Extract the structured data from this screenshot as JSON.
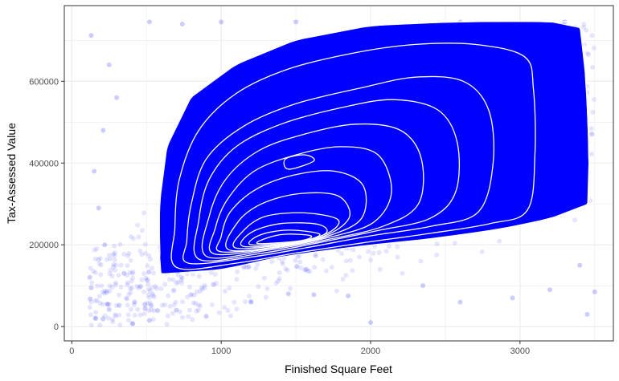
{
  "chart_data": {
    "type": "scatter",
    "title": "",
    "xlabel": "Finished Square Feet",
    "ylabel": "Tax-Assessed Value",
    "xlim": [
      -50,
      3625
    ],
    "ylim": [
      -35000,
      785000
    ],
    "x_ticks": [
      0,
      1000,
      2000,
      3000
    ],
    "x_tick_labels": [
      "0",
      "1000",
      "2000",
      "3000"
    ],
    "y_ticks": [
      0,
      200000,
      400000,
      600000
    ],
    "y_tick_labels": [
      "0",
      "200000",
      "400000",
      "600000"
    ],
    "grid": true,
    "legend": "none",
    "point_color": "#0000ff",
    "point_alpha": 0.1,
    "contour_color": "#ffffff",
    "panel_border_color": "#333333",
    "grid_color": "#ebebeb",
    "point_samples": [
      {
        "x": 130,
        "y": 712000
      },
      {
        "x": 250,
        "y": 640000
      },
      {
        "x": 300,
        "y": 560000
      },
      {
        "x": 210,
        "y": 480000
      },
      {
        "x": 150,
        "y": 380000
      },
      {
        "x": 180,
        "y": 290000
      },
      {
        "x": 220,
        "y": 200000
      },
      {
        "x": 130,
        "y": 95000
      },
      {
        "x": 160,
        "y": 20000
      },
      {
        "x": 350,
        "y": 130000
      },
      {
        "x": 420,
        "y": 60000
      },
      {
        "x": 520,
        "y": 15000
      },
      {
        "x": 700,
        "y": 40000
      },
      {
        "x": 900,
        "y": 25000
      },
      {
        "x": 1200,
        "y": 60000
      },
      {
        "x": 1450,
        "y": 80000
      },
      {
        "x": 1620,
        "y": 78000
      },
      {
        "x": 1850,
        "y": 75000
      },
      {
        "x": 2000,
        "y": 10000
      },
      {
        "x": 2350,
        "y": 100000
      },
      {
        "x": 2600,
        "y": 60000
      },
      {
        "x": 2950,
        "y": 70000
      },
      {
        "x": 3200,
        "y": 90000
      },
      {
        "x": 3400,
        "y": 150000
      },
      {
        "x": 3500,
        "y": 85000
      },
      {
        "x": 3450,
        "y": 30000
      },
      {
        "x": 520,
        "y": 745000
      },
      {
        "x": 740,
        "y": 740000
      },
      {
        "x": 1000,
        "y": 745000
      },
      {
        "x": 1500,
        "y": 745000
      },
      {
        "x": 2600,
        "y": 745000
      },
      {
        "x": 3300,
        "y": 745000
      }
    ],
    "contour_levels": [
      [
        [
          600,
          130000
        ],
        [
          1000,
          140000
        ],
        [
          1400,
          170000
        ],
        [
          1900,
          195000
        ],
        [
          2400,
          215000
        ],
        [
          2850,
          238000
        ],
        [
          3200,
          265000
        ],
        [
          3450,
          300000
        ],
        [
          3460,
          420000
        ],
        [
          3440,
          600000
        ],
        [
          3400,
          730000
        ],
        [
          3200,
          745000
        ],
        [
          2600,
          745000
        ],
        [
          2000,
          735000
        ],
        [
          1500,
          700000
        ],
        [
          1100,
          640000
        ],
        [
          800,
          560000
        ],
        [
          640,
          440000
        ],
        [
          590,
          300000
        ],
        [
          590,
          180000
        ]
      ],
      [
        [
          700,
          145000
        ],
        [
          1100,
          155000
        ],
        [
          1500,
          180000
        ],
        [
          1950,
          205000
        ],
        [
          2400,
          228000
        ],
        [
          2800,
          252000
        ],
        [
          3050,
          285000
        ],
        [
          3100,
          420000
        ],
        [
          3090,
          580000
        ],
        [
          3030,
          660000
        ],
        [
          2700,
          690000
        ],
        [
          2300,
          690000
        ],
        [
          1900,
          670000
        ],
        [
          1450,
          630000
        ],
        [
          1100,
          570000
        ],
        [
          850,
          480000
        ],
        [
          720,
          360000
        ],
        [
          690,
          240000
        ]
      ],
      [
        [
          780,
          155000
        ],
        [
          1200,
          170000
        ],
        [
          1600,
          195000
        ],
        [
          2000,
          222000
        ],
        [
          2400,
          245000
        ],
        [
          2720,
          280000
        ],
        [
          2820,
          400000
        ],
        [
          2790,
          530000
        ],
        [
          2620,
          600000
        ],
        [
          2300,
          610000
        ],
        [
          1950,
          585000
        ],
        [
          1500,
          545000
        ],
        [
          1150,
          490000
        ],
        [
          900,
          410000
        ],
        [
          800,
          300000
        ],
        [
          770,
          210000
        ]
      ],
      [
        [
          850,
          165000
        ],
        [
          1250,
          178000
        ],
        [
          1650,
          205000
        ],
        [
          2050,
          235000
        ],
        [
          2400,
          265000
        ],
        [
          2570,
          330000
        ],
        [
          2580,
          450000
        ],
        [
          2450,
          530000
        ],
        [
          2150,
          555000
        ],
        [
          1800,
          535000
        ],
        [
          1400,
          495000
        ],
        [
          1100,
          440000
        ],
        [
          920,
          360000
        ],
        [
          850,
          260000
        ]
      ],
      [
        [
          900,
          172000
        ],
        [
          1300,
          186000
        ],
        [
          1700,
          212000
        ],
        [
          2080,
          245000
        ],
        [
          2320,
          300000
        ],
        [
          2340,
          410000
        ],
        [
          2200,
          480000
        ],
        [
          1900,
          495000
        ],
        [
          1550,
          470000
        ],
        [
          1250,
          430000
        ],
        [
          1030,
          360000
        ],
        [
          920,
          270000
        ]
      ],
      [
        [
          950,
          178000
        ],
        [
          1350,
          192000
        ],
        [
          1720,
          218000
        ],
        [
          2020,
          255000
        ],
        [
          2140,
          330000
        ],
        [
          2050,
          420000
        ],
        [
          1800,
          440000
        ],
        [
          1500,
          420000
        ],
        [
          1220,
          380000
        ],
        [
          1040,
          310000
        ],
        [
          960,
          240000
        ]
      ],
      [
        [
          1000,
          183000
        ],
        [
          1400,
          196000
        ],
        [
          1720,
          222000
        ],
        [
          1940,
          265000
        ],
        [
          1950,
          345000
        ],
        [
          1760,
          380000
        ],
        [
          1480,
          370000
        ],
        [
          1230,
          335000
        ],
        [
          1060,
          280000
        ],
        [
          1000,
          220000
        ]
      ],
      [
        [
          1050,
          188000
        ],
        [
          1450,
          200000
        ],
        [
          1720,
          226000
        ],
        [
          1860,
          270000
        ],
        [
          1780,
          320000
        ],
        [
          1520,
          325000
        ],
        [
          1270,
          300000
        ],
        [
          1110,
          255000
        ]
      ],
      [
        [
          1100,
          192000
        ],
        [
          1480,
          204000
        ],
        [
          1720,
          230000
        ],
        [
          1780,
          262000
        ],
        [
          1560,
          278000
        ],
        [
          1300,
          270000
        ],
        [
          1150,
          235000
        ]
      ],
      [
        [
          1150,
          196000
        ],
        [
          1500,
          206000
        ],
        [
          1700,
          228000
        ],
        [
          1650,
          250000
        ],
        [
          1400,
          252000
        ],
        [
          1200,
          230000
        ]
      ],
      [
        [
          1200,
          200000
        ],
        [
          1520,
          208000
        ],
        [
          1660,
          226000
        ],
        [
          1450,
          236000
        ],
        [
          1260,
          224000
        ]
      ],
      [
        [
          1250,
          203000
        ],
        [
          1530,
          210000
        ],
        [
          1600,
          222000
        ],
        [
          1430,
          226000
        ],
        [
          1300,
          216000
        ]
      ],
      [
        [
          1450,
          385000
        ],
        [
          1620,
          405000
        ],
        [
          1560,
          420000
        ],
        [
          1430,
          410000
        ]
      ]
    ]
  }
}
